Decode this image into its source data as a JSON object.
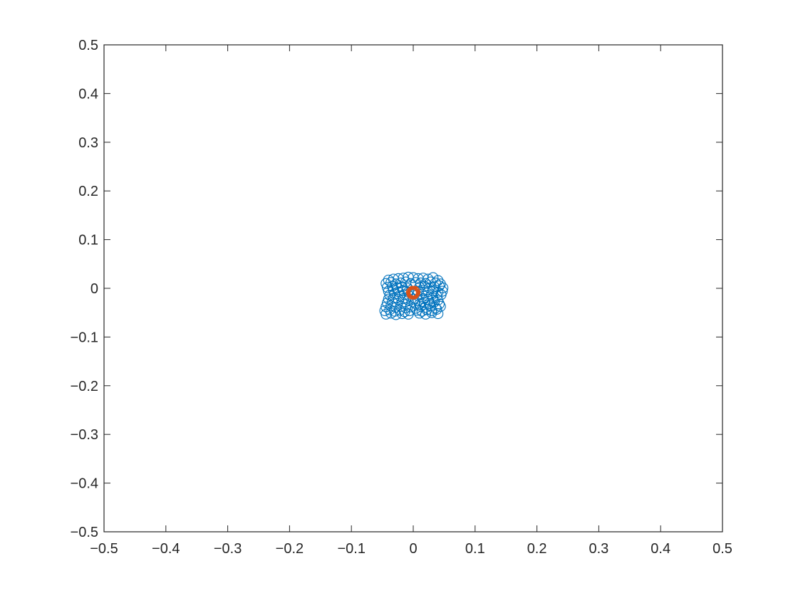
{
  "chart_data": {
    "type": "scatter",
    "title": "",
    "xlabel": "",
    "ylabel": "",
    "xlim": [
      -0.5,
      0.5
    ],
    "ylim": [
      -0.5,
      0.5
    ],
    "xticks": [
      -0.5,
      -0.4,
      -0.3,
      -0.2,
      -0.1,
      0,
      0.1,
      0.2,
      0.3,
      0.4,
      0.5
    ],
    "yticks": [
      -0.5,
      -0.4,
      -0.3,
      -0.2,
      -0.1,
      0,
      0.1,
      0.2,
      0.3,
      0.4,
      0.5
    ],
    "xtick_labels": [
      "−0.5",
      "−0.4",
      "−0.3",
      "−0.2",
      "−0.1",
      "0",
      "0.1",
      "0.2",
      "0.3",
      "0.4",
      "0.5"
    ],
    "ytick_labels": [
      "−0.5",
      "−0.4",
      "−0.3",
      "−0.2",
      "−0.1",
      "0",
      "0.1",
      "0.2",
      "0.3",
      "0.4",
      "0.5"
    ],
    "grid": false,
    "box": true,
    "legend": "none",
    "marker": "circle-open",
    "series": [
      {
        "color": "#0072BD",
        "points": [
          [
            -0.04,
            0.017
          ],
          [
            -0.032,
            0.019
          ],
          [
            -0.024,
            0.02
          ],
          [
            -0.016,
            0.021
          ],
          [
            -0.008,
            0.023
          ],
          [
            0.0,
            0.022
          ],
          [
            0.008,
            0.02
          ],
          [
            0.016,
            0.021
          ],
          [
            0.024,
            0.019
          ],
          [
            0.032,
            0.022
          ],
          [
            0.04,
            0.016
          ],
          [
            -0.044,
            0.01
          ],
          [
            -0.036,
            0.012
          ],
          [
            -0.028,
            0.009
          ],
          [
            -0.02,
            0.011
          ],
          [
            -0.012,
            0.013
          ],
          [
            -0.004,
            0.01
          ],
          [
            0.004,
            0.012
          ],
          [
            0.012,
            0.011
          ],
          [
            0.02,
            0.01
          ],
          [
            0.028,
            0.013
          ],
          [
            0.036,
            0.011
          ],
          [
            0.044,
            0.009
          ],
          [
            -0.042,
            0.002
          ],
          [
            -0.034,
            0.004
          ],
          [
            -0.026,
            0.001
          ],
          [
            -0.018,
            0.003
          ],
          [
            -0.01,
            0.0
          ],
          [
            0.01,
            0.002
          ],
          [
            0.018,
            0.004
          ],
          [
            0.026,
            0.001
          ],
          [
            0.034,
            0.003
          ],
          [
            0.042,
            0.005
          ],
          [
            0.048,
            0.001
          ],
          [
            -0.04,
            -0.006
          ],
          [
            -0.032,
            -0.004
          ],
          [
            -0.024,
            -0.007
          ],
          [
            -0.016,
            -0.005
          ],
          [
            -0.008,
            -0.008
          ],
          [
            0.008,
            -0.006
          ],
          [
            0.016,
            -0.004
          ],
          [
            0.024,
            -0.007
          ],
          [
            0.032,
            -0.005
          ],
          [
            0.04,
            -0.008
          ],
          [
            0.047,
            -0.006
          ],
          [
            -0.038,
            -0.014
          ],
          [
            -0.03,
            -0.012
          ],
          [
            -0.022,
            -0.015
          ],
          [
            -0.014,
            -0.013
          ],
          [
            -0.006,
            -0.016
          ],
          [
            0.006,
            -0.014
          ],
          [
            0.014,
            -0.012
          ],
          [
            0.022,
            -0.015
          ],
          [
            0.03,
            -0.013
          ],
          [
            0.038,
            -0.016
          ],
          [
            0.045,
            -0.013
          ],
          [
            -0.04,
            -0.022
          ],
          [
            -0.032,
            -0.02
          ],
          [
            -0.024,
            -0.023
          ],
          [
            -0.016,
            -0.021
          ],
          [
            -0.008,
            -0.024
          ],
          [
            0.0,
            -0.022
          ],
          [
            0.008,
            -0.025
          ],
          [
            0.016,
            -0.021
          ],
          [
            0.024,
            -0.023
          ],
          [
            0.032,
            -0.02
          ],
          [
            0.04,
            -0.024
          ],
          [
            -0.042,
            -0.03
          ],
          [
            -0.034,
            -0.028
          ],
          [
            -0.026,
            -0.031
          ],
          [
            -0.018,
            -0.029
          ],
          [
            -0.01,
            -0.032
          ],
          [
            0.002,
            -0.03
          ],
          [
            0.01,
            -0.033
          ],
          [
            0.018,
            -0.029
          ],
          [
            0.026,
            -0.031
          ],
          [
            0.034,
            -0.028
          ],
          [
            0.042,
            -0.032
          ],
          [
            -0.044,
            -0.038
          ],
          [
            -0.036,
            -0.036
          ],
          [
            -0.028,
            -0.039
          ],
          [
            -0.02,
            -0.037
          ],
          [
            -0.012,
            -0.04
          ],
          [
            -0.004,
            -0.038
          ],
          [
            0.004,
            -0.041
          ],
          [
            0.012,
            -0.037
          ],
          [
            0.02,
            -0.039
          ],
          [
            0.028,
            -0.036
          ],
          [
            0.036,
            -0.04
          ],
          [
            0.044,
            -0.037
          ],
          [
            -0.046,
            -0.046
          ],
          [
            -0.038,
            -0.044
          ],
          [
            -0.03,
            -0.047
          ],
          [
            -0.022,
            -0.045
          ],
          [
            -0.014,
            -0.048
          ],
          [
            -0.006,
            -0.046
          ],
          [
            0.006,
            -0.045
          ],
          [
            0.014,
            -0.047
          ],
          [
            0.022,
            -0.044
          ],
          [
            0.03,
            -0.046
          ],
          [
            0.038,
            -0.043
          ],
          [
            -0.044,
            -0.053
          ],
          [
            -0.036,
            -0.051
          ],
          [
            -0.028,
            -0.054
          ],
          [
            -0.018,
            -0.052
          ],
          [
            -0.008,
            -0.053
          ],
          [
            0.01,
            -0.051
          ],
          [
            0.02,
            -0.053
          ],
          [
            0.03,
            -0.05
          ],
          [
            0.04,
            -0.052
          ]
        ]
      },
      {
        "color": "#D95319",
        "points": [
          [
            0.0,
            -0.008
          ],
          [
            0.002,
            -0.01
          ],
          [
            -0.002,
            -0.01
          ],
          [
            0.001,
            -0.012
          ],
          [
            -0.001,
            -0.006
          ],
          [
            0.003,
            -0.008
          ],
          [
            -0.003,
            -0.008
          ],
          [
            0.0,
            -0.011
          ],
          [
            0.002,
            -0.006
          ],
          [
            -0.002,
            -0.012
          ],
          [
            0.001,
            -0.009
          ],
          [
            -0.001,
            -0.009
          ]
        ]
      }
    ]
  }
}
